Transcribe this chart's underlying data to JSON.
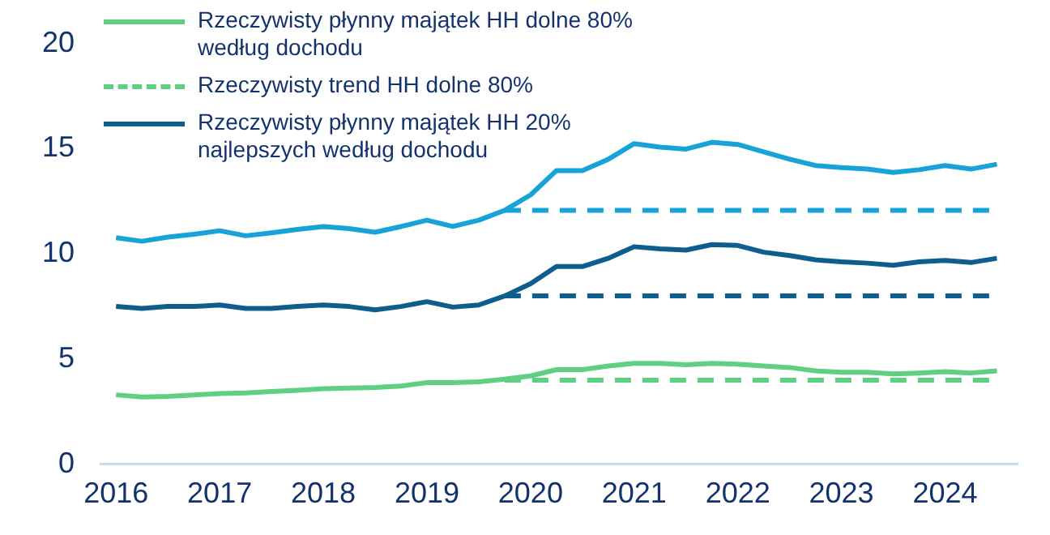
{
  "chart_data": {
    "type": "line",
    "xlim": [
      2015.85,
      2024.7
    ],
    "xticks": [
      2016,
      2017,
      2018,
      2019,
      2020,
      2021,
      2022,
      2023,
      2024
    ],
    "ylim": [
      0,
      20
    ],
    "yticks": [
      0,
      5,
      10,
      15,
      20
    ],
    "grid": false,
    "legend": "top left",
    "marker": "none",
    "x": [
      2016,
      2016.25,
      2016.5,
      2016.75,
      2017,
      2017.25,
      2017.5,
      2017.75,
      2018,
      2018.25,
      2018.5,
      2018.75,
      2019,
      2019.25,
      2019.5,
      2019.75,
      2020,
      2020.25,
      2020.5,
      2020.75,
      2021,
      2021.25,
      2021.5,
      2021.75,
      2022,
      2022.25,
      2022.5,
      2022.75,
      2023,
      2023.25,
      2023.5,
      2023.75,
      2024,
      2024.25,
      2024.5
    ],
    "series": [
      {
        "name": "Rzeczywisty płynny majątek HH dolne 80% według dochodu",
        "color": "#5fcf84",
        "line_style": "solid",
        "values": [
          3.3,
          3.2,
          3.23,
          3.3,
          3.36,
          3.39,
          3.46,
          3.52,
          3.59,
          3.62,
          3.65,
          3.72,
          3.88,
          3.88,
          3.92,
          4.05,
          4.2,
          4.5,
          4.5,
          4.67,
          4.8,
          4.8,
          4.73,
          4.8,
          4.76,
          4.67,
          4.6,
          4.44,
          4.37,
          4.37,
          4.3,
          4.34,
          4.4,
          4.34,
          4.44
        ]
      },
      {
        "name": "Rzeczywisty trend HH dolne 80%",
        "color": "#5fcf84",
        "line_style": "dashed",
        "values": [
          null,
          null,
          null,
          null,
          null,
          null,
          null,
          null,
          null,
          null,
          null,
          null,
          null,
          null,
          null,
          4.0,
          4.0,
          4.0,
          4.0,
          4.0,
          4.0,
          4.0,
          4.0,
          4.0,
          4.0,
          4.0,
          4.0,
          4.0,
          4.0,
          4.0,
          4.0,
          4.0,
          4.0,
          4.0,
          4.0
        ]
      },
      {
        "name": "Rzeczywisty płynny majątek HH 20% najlepszych według dochodu",
        "color": "#0d5e8e",
        "line_style": "solid",
        "values": [
          7.5,
          7.41,
          7.5,
          7.5,
          7.57,
          7.41,
          7.41,
          7.5,
          7.57,
          7.5,
          7.34,
          7.5,
          7.73,
          7.47,
          7.57,
          8.0,
          8.58,
          9.4,
          9.4,
          9.79,
          10.34,
          10.24,
          10.18,
          10.44,
          10.4,
          10.08,
          9.92,
          9.72,
          9.62,
          9.56,
          9.46,
          9.62,
          9.69,
          9.59,
          9.79
        ]
      },
      {
        "color": "#0d5e8e",
        "line_style": "dashed",
        "values": [
          null,
          null,
          null,
          null,
          null,
          null,
          null,
          null,
          null,
          null,
          null,
          null,
          null,
          null,
          null,
          8.0,
          8.0,
          8.0,
          8.0,
          8.0,
          8.0,
          8.0,
          8.0,
          8.0,
          8.0,
          8.0,
          8.0,
          8.0,
          8.0,
          8.0,
          8.0,
          8.0,
          8.0,
          8.0,
          8.0
        ]
      },
      {
        "color": "#18a3d8",
        "line_style": "solid",
        "values": [
          10.77,
          10.6,
          10.8,
          10.93,
          11.1,
          10.86,
          11.0,
          11.16,
          11.3,
          11.2,
          11.03,
          11.3,
          11.6,
          11.3,
          11.6,
          12.07,
          12.8,
          13.96,
          13.96,
          14.5,
          15.24,
          15.07,
          14.98,
          15.3,
          15.2,
          14.85,
          14.5,
          14.2,
          14.1,
          14.03,
          13.87,
          14.0,
          14.2,
          14.03,
          14.26
        ]
      },
      {
        "color": "#18a3d8",
        "line_style": "dashed",
        "values": [
          null,
          null,
          null,
          null,
          null,
          null,
          null,
          null,
          null,
          null,
          null,
          null,
          null,
          null,
          null,
          12.07,
          12.07,
          12.07,
          12.07,
          12.07,
          12.07,
          12.07,
          12.07,
          12.07,
          12.07,
          12.07,
          12.07,
          12.07,
          12.07,
          12.07,
          12.07,
          12.07,
          12.07,
          12.07,
          12.07
        ]
      }
    ]
  }
}
